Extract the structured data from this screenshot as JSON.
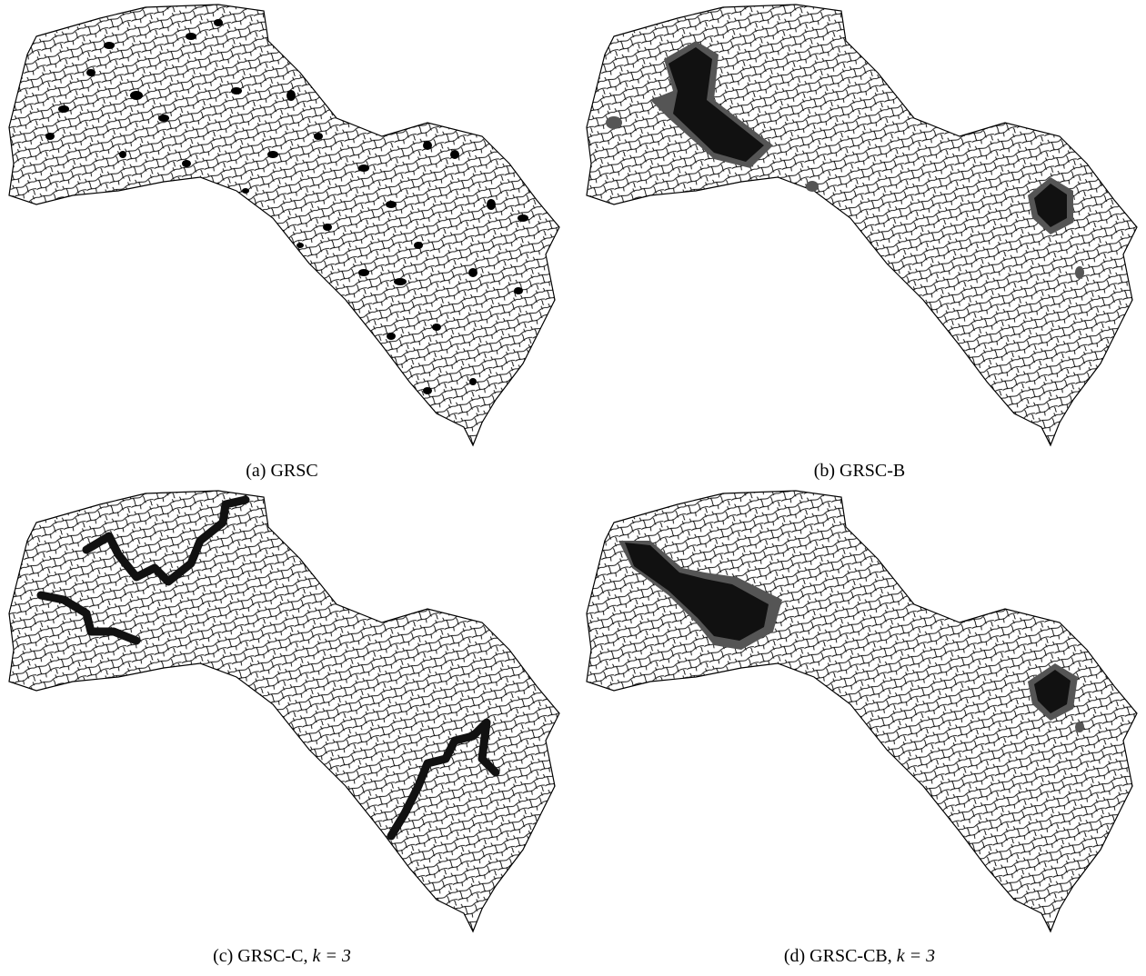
{
  "panels": [
    {
      "caption": "(a) GRSC"
    },
    {
      "caption": "(b) GRSC-B"
    },
    {
      "caption": "(c) GRSC-C,",
      "parameter": "k = 3"
    },
    {
      "caption": "(d) GRSC-CB,",
      "parameter": "k = 3"
    }
  ]
}
